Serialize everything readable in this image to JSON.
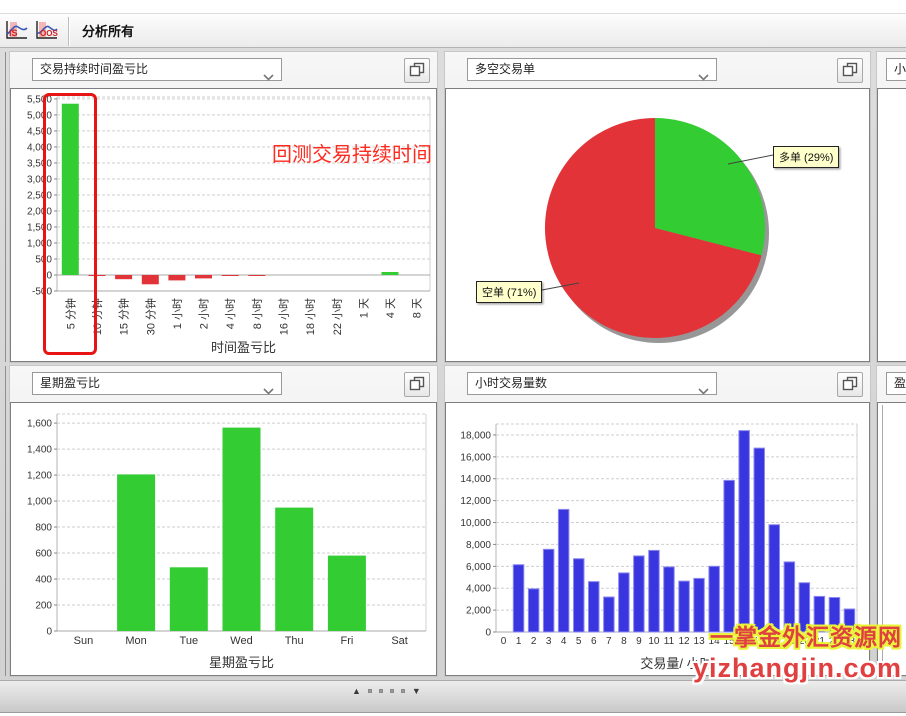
{
  "toolbar": {
    "title": "分析所有",
    "icons": [
      {
        "name": "is-sample-chart-icon",
        "label": "IS"
      },
      {
        "name": "oos-sample-chart-icon",
        "label": "OOS"
      }
    ]
  },
  "panels": {
    "p1": {
      "dropdown": "交易持续时间盈亏比"
    },
    "p2": {
      "dropdown": "多空交易单"
    },
    "p3": {
      "dropdown_partial": "小"
    },
    "p4": {
      "dropdown": "星期盈亏比"
    },
    "p5": {
      "dropdown": "小时交易量数"
    },
    "p6": {
      "dropdown_partial": "盈"
    }
  },
  "annotations": {
    "highlight_box_target": "5 分钟",
    "text": "回测交易持续时间",
    "text_color": "#FF2A1E",
    "box_color": "#E81414"
  },
  "chart_data": [
    {
      "id": "trade-duration-pl",
      "type": "bar",
      "title": "交易持续时间盈亏比",
      "xlabel": "时间盈亏比",
      "categories": [
        "5 分钟",
        "10 分钟",
        "15 分钟",
        "30 分钟",
        "1 小时",
        "2 小时",
        "4 小时",
        "8 小时",
        "16 小时",
        "18 小时",
        "22 小时",
        "1 天",
        "4 天",
        "8 天"
      ],
      "values": [
        5350,
        -30,
        -130,
        -290,
        -170,
        -105,
        -15,
        -15,
        0,
        0,
        0,
        0,
        95,
        0
      ],
      "ylim": [
        -500,
        5500
      ],
      "ytick_step": 500,
      "positive_color": "#33CC33",
      "negative_color": "#E23438",
      "grid": true
    },
    {
      "id": "long-short-orders",
      "type": "pie",
      "title": "多空交易单",
      "slices": [
        {
          "label": "多单 (29%)",
          "value": 29,
          "color": "#33CC33"
        },
        {
          "label": "空单 (71%)",
          "value": 71,
          "color": "#E23438"
        }
      ]
    },
    {
      "id": "right-partial-top",
      "type": "bar",
      "visible_part": "y-axis only",
      "ylim": [
        0,
        6000
      ],
      "ytick_step": 500,
      "values": []
    },
    {
      "id": "weekday-pl",
      "type": "bar",
      "title": "星期盈亏比",
      "xlabel": "星期盈亏比",
      "categories": [
        "Sun",
        "Mon",
        "Tue",
        "Wed",
        "Thu",
        "Fri",
        "Sat"
      ],
      "values": [
        0,
        1205,
        490,
        1565,
        950,
        580,
        0
      ],
      "ylim": [
        0,
        1600
      ],
      "ytick_step": 200,
      "color": "#33CC33",
      "grid": true
    },
    {
      "id": "hourly-volume",
      "type": "bar",
      "title": "小时交易量数",
      "xlabel": "交易量/ 小时",
      "categories": [
        "0",
        "1",
        "2",
        "3",
        "4",
        "5",
        "6",
        "7",
        "8",
        "9",
        "10",
        "11",
        "12",
        "13",
        "14",
        "15",
        "16",
        "17",
        "18",
        "19",
        "20",
        "21",
        "22",
        "23"
      ],
      "values": [
        0,
        6150,
        3950,
        7550,
        11200,
        6700,
        4600,
        3200,
        5400,
        6950,
        7450,
        5950,
        4650,
        4900,
        6000,
        13850,
        18400,
        16800,
        9800,
        6400,
        4500,
        3250,
        3150,
        2100
      ],
      "ylim": [
        0,
        18000
      ],
      "ytick_step": 2000,
      "color": "#3A36DF",
      "bar_stroke": "#8D8AEF",
      "grid": true
    },
    {
      "id": "right-partial-bottom",
      "type": "unknown",
      "visible_part": "empty frame"
    }
  ],
  "watermark": {
    "line1": "一掌金外汇资源网",
    "line2": "yizhangjin.com"
  },
  "pager": {
    "up": "▲",
    "down": "▼",
    "dot_count": 4
  },
  "colors": {
    "green": "#33CC33",
    "red": "#E23438",
    "blue": "#3A36DF",
    "pie_label_bg": "#FFFFCC"
  }
}
